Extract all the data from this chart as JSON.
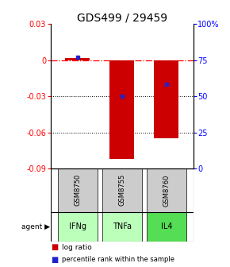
{
  "title": "GDS499 / 29459",
  "samples": [
    "GSM8750",
    "GSM8755",
    "GSM8760"
  ],
  "agents": [
    "IFNg",
    "TNFa",
    "IL4"
  ],
  "log_ratios": [
    0.002,
    -0.082,
    -0.065
  ],
  "percentile_ranks": [
    0.77,
    0.5,
    0.585
  ],
  "ylim_left": [
    -0.09,
    0.03
  ],
  "ylim_right": [
    0,
    1.0
  ],
  "yticks_left": [
    0.03,
    0.0,
    -0.03,
    -0.06,
    -0.09
  ],
  "yticks_right": [
    1.0,
    0.75,
    0.5,
    0.25,
    0.0
  ],
  "ytick_labels_left": [
    "0.03",
    "0",
    "-0.03",
    "-0.06",
    "-0.09"
  ],
  "ytick_labels_right": [
    "100%",
    "75",
    "50",
    "25",
    "0"
  ],
  "bar_color": "#cc0000",
  "dot_color": "#2222cc",
  "sample_bg": "#cccccc",
  "agent_colors": [
    "#bbffbb",
    "#bbffbb",
    "#55dd55"
  ],
  "dotted_lines": [
    -0.03,
    -0.06
  ],
  "title_fontsize": 10,
  "tick_fontsize": 7,
  "bar_width": 0.55,
  "legend_square": "■"
}
